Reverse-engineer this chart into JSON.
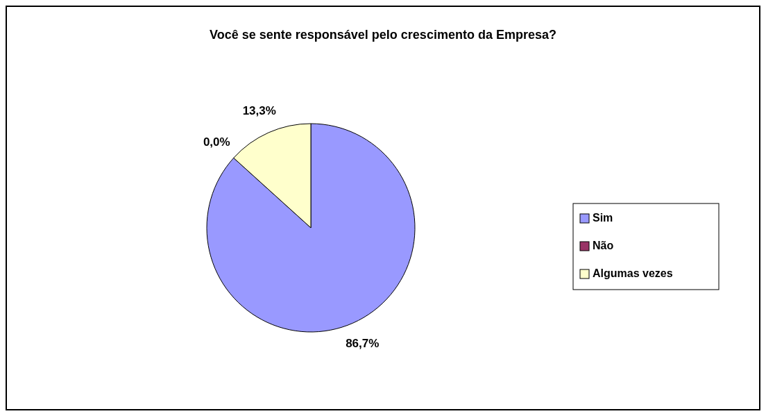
{
  "chart_data": {
    "type": "pie",
    "title": "Você se sente responsável pelo crescimento da Empresa?",
    "categories": [
      "Sim",
      "Não",
      "Algumas vezes"
    ],
    "values": [
      86.7,
      0.0,
      13.3
    ],
    "colors": [
      "#9999ff",
      "#993366",
      "#ffffcc"
    ],
    "value_labels": [
      "86,7%",
      "0,0%",
      "13,3%"
    ],
    "legend": "right"
  }
}
